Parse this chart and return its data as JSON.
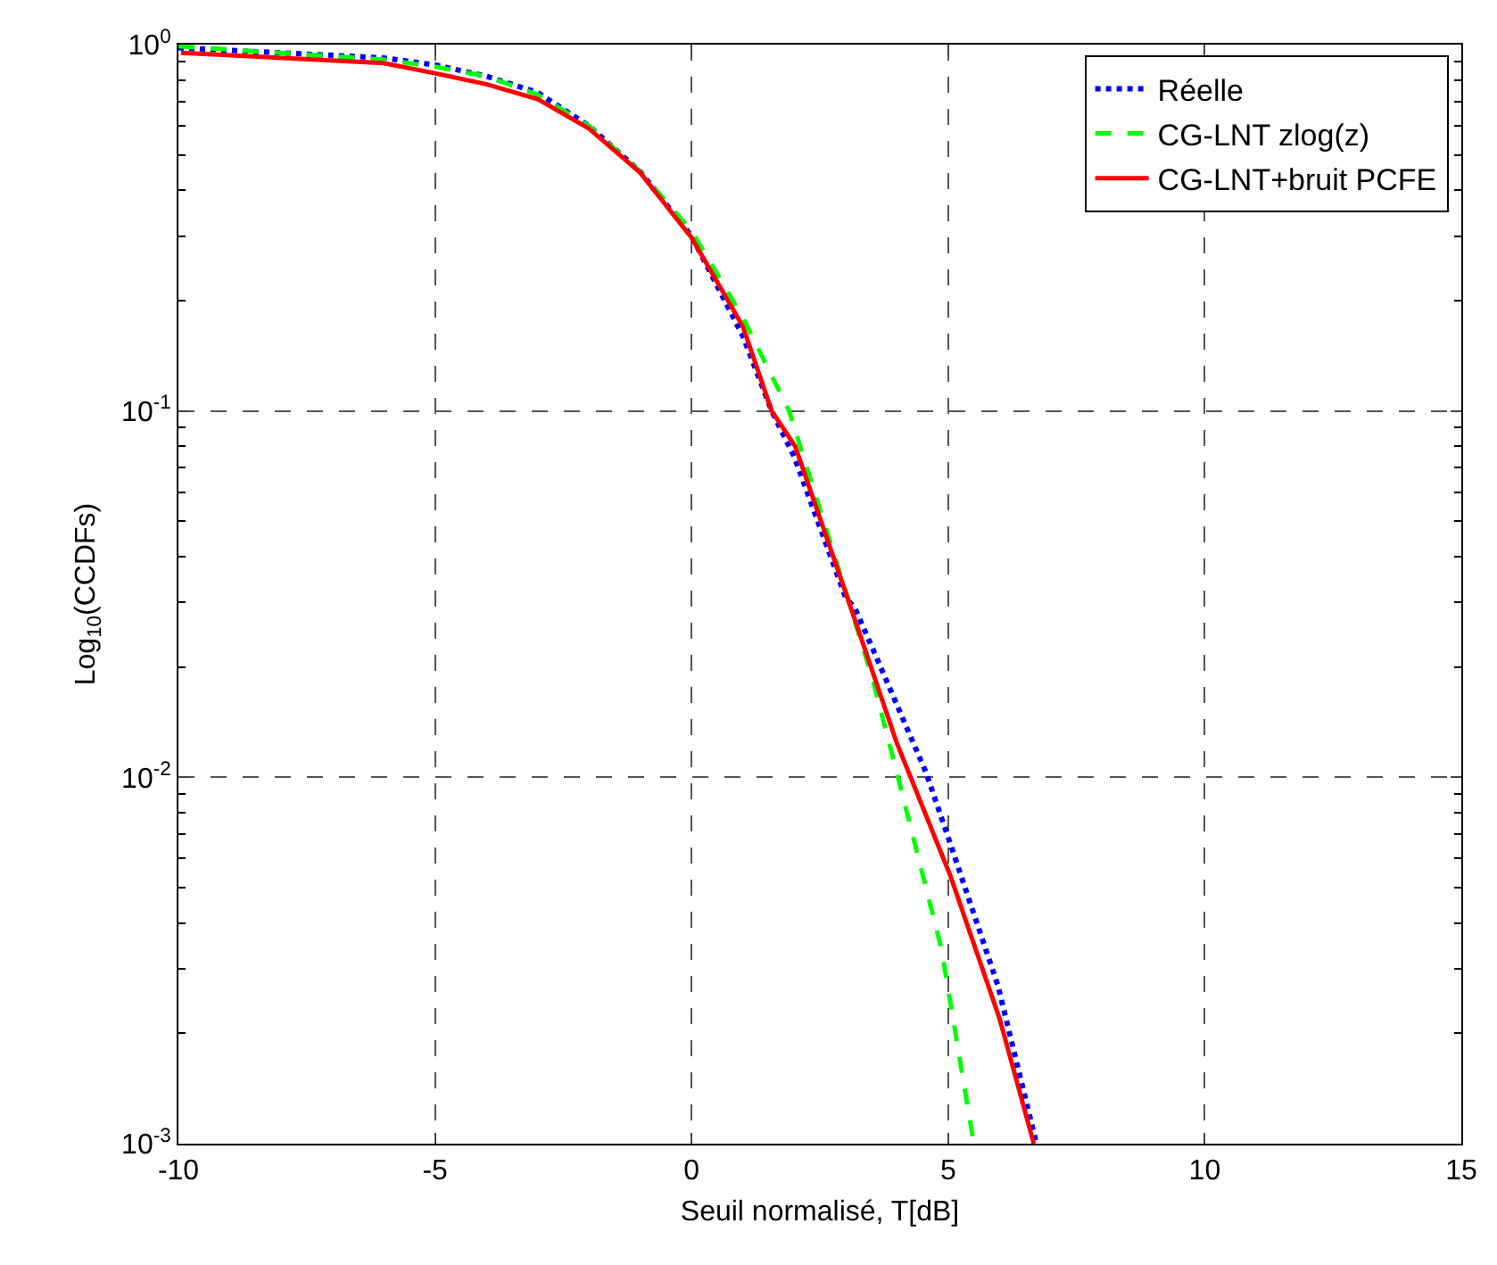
{
  "chart_data": {
    "type": "line",
    "xlabel": "Seuil normalisé, T[dB]",
    "ylabel": "Log$_{10}$(CCDFs)",
    "log": "y",
    "grid": true,
    "legend": "top right",
    "marker": "none",
    "xlim": [
      -10,
      15
    ],
    "xticks": [
      -10,
      -5,
      0,
      5,
      10,
      15
    ],
    "ylim": [
      0.001,
      1
    ],
    "yticks": [
      {
        "value": 0.001,
        "label": "10$^{-3}$"
      },
      {
        "value": 0.01,
        "label": "10$^{-2}$"
      },
      {
        "value": 0.1,
        "label": "10$^{-1}$"
      },
      {
        "value": 1,
        "label": "10$^{0}$"
      }
    ],
    "series": [
      {
        "name": "Réelle",
        "color": "#0000ff",
        "line_style": "dotted",
        "x": [
          -10,
          -6,
          -5,
          -4,
          -3,
          -2,
          -1,
          0,
          1,
          1.56,
          2,
          3,
          3.18,
          3.52,
          4.57,
          5.04,
          5.97,
          6.72
        ],
        "values": [
          0.98,
          0.92,
          0.88,
          0.82,
          0.74,
          0.6,
          0.45,
          0.3,
          0.16,
          0.1,
          0.075,
          0.031,
          0.029,
          0.0226,
          0.0103,
          0.0066,
          0.0027,
          0.001
        ]
      },
      {
        "name": "CG-LNT zlog(z)",
        "color": "#00ff00",
        "line_style": "dashed",
        "x": [
          -10,
          -6,
          -5,
          -4,
          -3,
          -2,
          -1,
          0,
          1,
          1.9,
          2.95,
          3.52,
          4.0,
          4.87,
          5.5
        ],
        "values": [
          0.99,
          0.91,
          0.87,
          0.82,
          0.73,
          0.6,
          0.45,
          0.31,
          0.18,
          0.1,
          0.034,
          0.0187,
          0.0103,
          0.0034,
          0.001
        ]
      },
      {
        "name": "CG-LNT+bruit PCFE",
        "color": "#ff0000",
        "line_style": "solid",
        "x": [
          -9.95,
          -6,
          -5,
          -4,
          -3,
          -2,
          -1,
          0,
          1,
          1.56,
          2.02,
          3,
          3.41,
          4,
          5.04,
          6,
          6.67
        ],
        "values": [
          0.95,
          0.89,
          0.835,
          0.78,
          0.71,
          0.59,
          0.447,
          0.297,
          0.17,
          0.1,
          0.08,
          0.032,
          0.0217,
          0.0124,
          0.0054,
          0.0022,
          0.001
        ]
      }
    ]
  }
}
